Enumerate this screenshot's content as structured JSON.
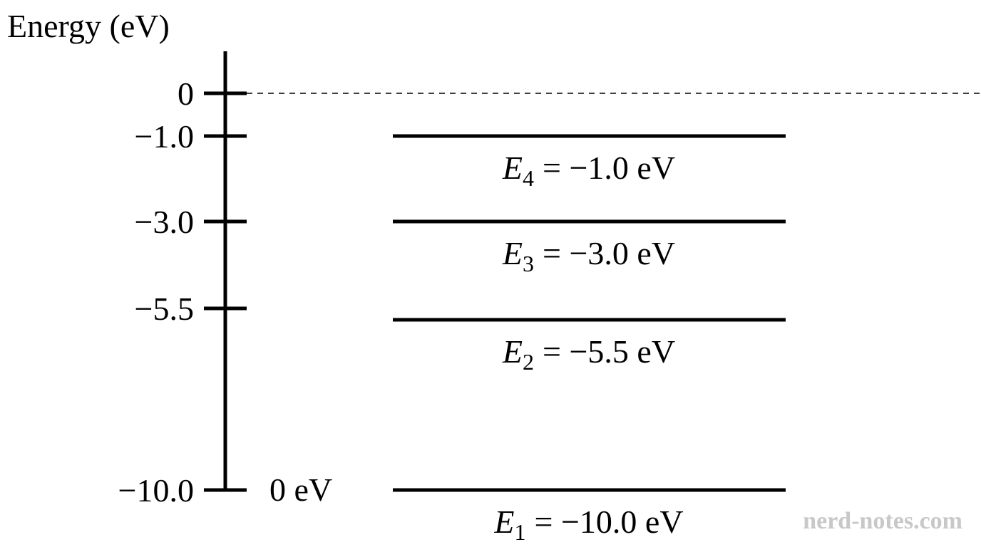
{
  "axis": {
    "label": "Energy (eV)",
    "ticks": [
      "0",
      "−1.0",
      "−3.0",
      "−5.5",
      "−10.0"
    ]
  },
  "levels": [
    {
      "symbol": "E",
      "index": "4",
      "text": "= −1.0 eV"
    },
    {
      "symbol": "E",
      "index": "3",
      "text": "= −3.0 eV"
    },
    {
      "symbol": "E",
      "index": "2",
      "text": "= −5.5 eV"
    },
    {
      "symbol": "E",
      "index": "1",
      "text": "= −10.0 eV"
    }
  ],
  "ground_note": "0 eV",
  "watermark": "nerd-notes.com"
}
